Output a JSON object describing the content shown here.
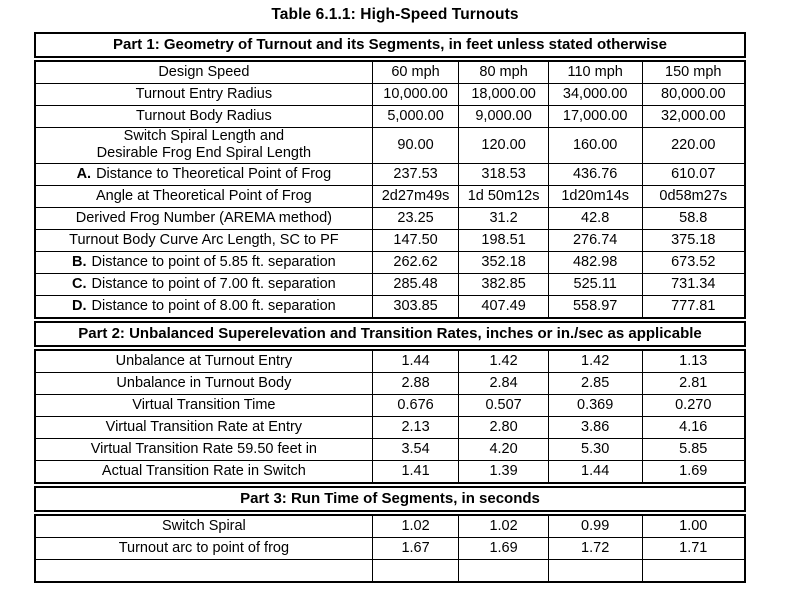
{
  "title": "Table 6.1.1:  High-Speed Turnouts",
  "sections": [
    {
      "header": "Part 1:  Geometry of Turnout and its Segments, in feet unless stated otherwise",
      "rows": [
        {
          "prefix": "",
          "label": "Design Speed",
          "values": [
            "60 mph",
            "80 mph",
            "110 mph",
            "150 mph"
          ]
        },
        {
          "prefix": "",
          "label": "Turnout Entry Radius",
          "values": [
            "10,000.00",
            "18,000.00",
            "34,000.00",
            "80,000.00"
          ]
        },
        {
          "prefix": "",
          "label": "Turnout Body Radius",
          "values": [
            "5,000.00",
            "9,000.00",
            "17,000.00",
            "32,000.00"
          ]
        },
        {
          "prefix": "",
          "label": "Switch Spiral Length and\nDesirable Frog End Spiral Length",
          "values": [
            "90.00",
            "120.00",
            "160.00",
            "220.00"
          ]
        },
        {
          "prefix": "A.",
          "label": "Distance to Theoretical Point of Frog",
          "values": [
            "237.53",
            "318.53",
            "436.76",
            "610.07"
          ]
        },
        {
          "prefix": "",
          "label": "Angle at Theoretical Point of Frog",
          "values": [
            "2d27m49s",
            "1d 50m12s",
            "1d20m14s",
            "0d58m27s"
          ]
        },
        {
          "prefix": "",
          "label": "Derived Frog Number (AREMA method)",
          "values": [
            "23.25",
            "31.2",
            "42.8",
            "58.8"
          ]
        },
        {
          "prefix": "",
          "label": "Turnout Body Curve Arc Length, SC to PF",
          "values": [
            "147.50",
            "198.51",
            "276.74",
            "375.18"
          ]
        },
        {
          "prefix": "B.",
          "label": "Distance to point of 5.85 ft. separation",
          "values": [
            "262.62",
            "352.18",
            "482.98",
            "673.52"
          ]
        },
        {
          "prefix": "C.",
          "label": "Distance to point of 7.00 ft. separation",
          "values": [
            "285.48",
            "382.85",
            "525.11",
            "731.34"
          ]
        },
        {
          "prefix": "D.",
          "label": "Distance to point of 8.00 ft. separation",
          "values": [
            "303.85",
            "407.49",
            "558.97",
            "777.81"
          ]
        }
      ]
    },
    {
      "header": "Part 2:  Unbalanced Superelevation and Transition Rates, inches or in./sec as applicable",
      "rows": [
        {
          "prefix": "",
          "label": "Unbalance at Turnout Entry",
          "values": [
            "1.44",
            "1.42",
            "1.42",
            "1.13"
          ]
        },
        {
          "prefix": "",
          "label": "Unbalance in Turnout Body",
          "values": [
            "2.88",
            "2.84",
            "2.85",
            "2.81"
          ]
        },
        {
          "prefix": "",
          "label": "Virtual Transition Time",
          "values": [
            "0.676",
            "0.507",
            "0.369",
            "0.270"
          ]
        },
        {
          "prefix": "",
          "label": "Virtual Transition Rate at Entry",
          "values": [
            "2.13",
            "2.80",
            "3.86",
            "4.16"
          ]
        },
        {
          "prefix": "",
          "label": "Virtual Transition Rate 59.50 feet in",
          "values": [
            "3.54",
            "4.20",
            "5.30",
            "5.85"
          ]
        },
        {
          "prefix": "",
          "label": "Actual Transition Rate in Switch",
          "values": [
            "1.41",
            "1.39",
            "1.44",
            "1.69"
          ]
        }
      ]
    },
    {
      "header": "Part 3:  Run Time of Segments, in seconds",
      "rows": [
        {
          "prefix": "",
          "label": "Switch Spiral",
          "values": [
            "1.02",
            "1.02",
            "0.99",
            "1.00"
          ]
        },
        {
          "prefix": "",
          "label": "Turnout arc to point of frog",
          "values": [
            "1.67",
            "1.69",
            "1.72",
            "1.71"
          ]
        },
        {
          "prefix": "",
          "label": "",
          "values": [
            "",
            "",
            "",
            ""
          ]
        }
      ]
    }
  ]
}
